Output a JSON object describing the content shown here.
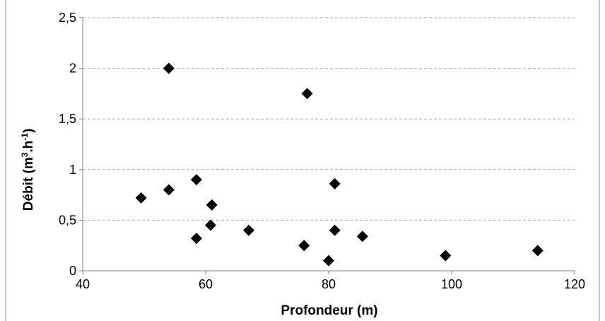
{
  "chart_data": {
    "type": "scatter",
    "title": "",
    "xlabel": "Profondeur (m)",
    "ylabel_parts": {
      "base": "Débit (m",
      "sup1": "3",
      "mid": ".h",
      "sup2": "-1",
      "end": ")"
    },
    "xlim": [
      40,
      120
    ],
    "ylim": [
      0,
      2.5
    ],
    "x_ticks": [
      "40",
      "60",
      "80",
      "100",
      "120"
    ],
    "y_ticks": [
      "0",
      "0,5",
      "1",
      "1,5",
      "2",
      "2,5"
    ],
    "grid": "horizontal dashed",
    "marker": "diamond",
    "marker_color": "#000000",
    "points": [
      {
        "x": 49.5,
        "y": 0.72
      },
      {
        "x": 54,
        "y": 2.0
      },
      {
        "x": 54,
        "y": 0.8
      },
      {
        "x": 58.5,
        "y": 0.9
      },
      {
        "x": 58.5,
        "y": 0.32
      },
      {
        "x": 60.8,
        "y": 0.45
      },
      {
        "x": 61,
        "y": 0.65
      },
      {
        "x": 67,
        "y": 0.4
      },
      {
        "x": 76,
        "y": 0.25
      },
      {
        "x": 76.5,
        "y": 1.75
      },
      {
        "x": 80,
        "y": 0.1
      },
      {
        "x": 81,
        "y": 0.86
      },
      {
        "x": 81,
        "y": 0.4
      },
      {
        "x": 85.5,
        "y": 0.34
      },
      {
        "x": 99,
        "y": 0.15
      },
      {
        "x": 114,
        "y": 0.2
      }
    ]
  }
}
